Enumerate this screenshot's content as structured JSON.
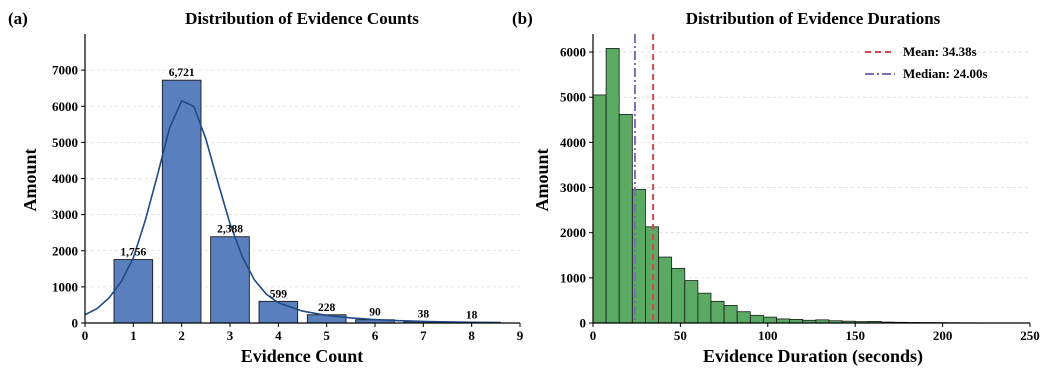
{
  "chart_data": [
    {
      "panel_label": "(a)",
      "type": "bar",
      "title": "Distribution of Evidence Counts",
      "xlabel": "Evidence Count",
      "ylabel": "Amount",
      "x": [
        1,
        2,
        3,
        4,
        5,
        6,
        7,
        8
      ],
      "values": [
        1756,
        6721,
        2388,
        599,
        228,
        90,
        38,
        18
      ],
      "value_labels": [
        "1,756",
        "6,721",
        "2,388",
        "599",
        "228",
        "90",
        "38",
        "18"
      ],
      "xlim": [
        0,
        9
      ],
      "ylim": [
        0,
        8000
      ],
      "xticks": [
        0,
        1,
        2,
        3,
        4,
        5,
        6,
        7,
        8,
        9
      ],
      "yticks": [
        0,
        1000,
        2000,
        3000,
        4000,
        5000,
        6000,
        7000
      ],
      "grid": "horizontal-dashed",
      "bar_color": "#5a7fbf",
      "curve_color": "#1f4a86",
      "density_curve": {
        "x": [
          0,
          0.25,
          0.5,
          0.75,
          1,
          1.25,
          1.5,
          1.75,
          2,
          2.25,
          2.5,
          2.75,
          3,
          3.25,
          3.5,
          3.75,
          4,
          4.5,
          5,
          5.5,
          6,
          6.5,
          7,
          7.5,
          8,
          8.6
        ],
        "y": [
          230,
          400,
          700,
          1150,
          1800,
          2850,
          4100,
          5400,
          6150,
          6000,
          5100,
          3900,
          2750,
          1850,
          1200,
          800,
          560,
          330,
          210,
          140,
          95,
          65,
          45,
          30,
          20,
          10
        ]
      }
    },
    {
      "panel_label": "(b)",
      "type": "bar",
      "title": "Distribution of Evidence Durations",
      "xlabel": "Evidence Duration (seconds)",
      "ylabel": "Amount",
      "bin_width": 7.5,
      "bin_starts": [
        0,
        7.5,
        15,
        22.5,
        30,
        37.5,
        45,
        52.5,
        60,
        67.5,
        75,
        82.5,
        90,
        97.5,
        105,
        112.5,
        120,
        127.5,
        135,
        142.5,
        150,
        157.5,
        165,
        172.5,
        180,
        187.5,
        195,
        202.5,
        210,
        217.5,
        225,
        232.5,
        240
      ],
      "values": [
        5050,
        6080,
        4620,
        2960,
        2130,
        1460,
        1210,
        940,
        660,
        480,
        390,
        250,
        170,
        130,
        90,
        80,
        60,
        70,
        50,
        40,
        30,
        35,
        20,
        15,
        12,
        10,
        8,
        6,
        4,
        3,
        2,
        2,
        1
      ],
      "xlim": [
        0,
        250
      ],
      "ylim": [
        0,
        6400
      ],
      "xticks": [
        0,
        50,
        100,
        150,
        200,
        250
      ],
      "yticks": [
        0,
        1000,
        2000,
        3000,
        4000,
        5000,
        6000
      ],
      "grid": "horizontal-dashed",
      "bar_color": "#5aaa64",
      "mean": 34.38,
      "median": 24.0,
      "mean_color": "#d04a4a",
      "median_color": "#7b70b8",
      "legend": [
        "Mean: 34.38s",
        "Median: 24.00s"
      ],
      "legend_position": "top-right"
    }
  ]
}
